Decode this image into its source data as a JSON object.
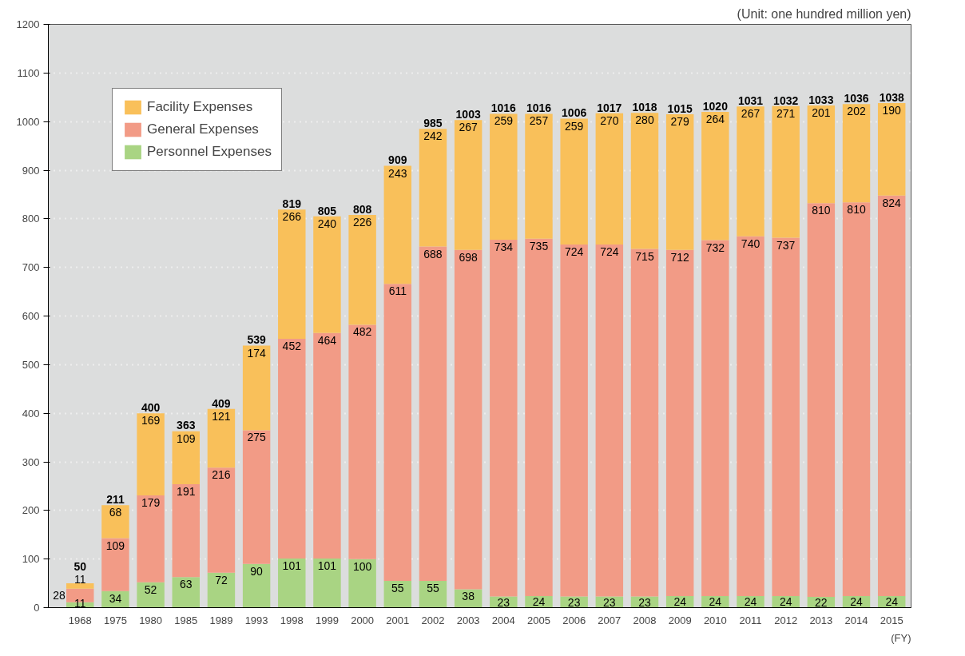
{
  "chart_data": {
    "type": "bar",
    "stacked": true,
    "xlabel": "(FY)",
    "annotations": [
      "(Unit: one hundred million yen)"
    ],
    "categories": [
      "1968",
      "1975",
      "1980",
      "1985",
      "1989",
      "1993",
      "1998",
      "1999",
      "2000",
      "2001",
      "2002",
      "2003",
      "2004",
      "2005",
      "2006",
      "2007",
      "2008",
      "2009",
      "2010",
      "2011",
      "2012",
      "2013",
      "2014",
      "2015"
    ],
    "series": [
      {
        "name": "Personnel Expenses",
        "color": "#a9d483",
        "values": [
          11,
          34,
          52,
          63,
          72,
          90,
          101,
          101,
          100,
          55,
          55,
          38,
          23,
          24,
          23,
          23,
          23,
          24,
          24,
          24,
          24,
          22,
          24,
          24
        ]
      },
      {
        "name": "General Expenses",
        "color": "#f29b86",
        "values": [
          28,
          109,
          179,
          191,
          216,
          275,
          452,
          464,
          482,
          611,
          688,
          698,
          734,
          735,
          724,
          724,
          715,
          712,
          732,
          740,
          737,
          810,
          810,
          824
        ]
      },
      {
        "name": "Facility Expenses",
        "color": "#f9c05a",
        "values": [
          11,
          68,
          169,
          109,
          121,
          174,
          266,
          240,
          226,
          243,
          242,
          267,
          259,
          257,
          259,
          270,
          280,
          279,
          264,
          267,
          271,
          201,
          202,
          190
        ]
      }
    ],
    "totals": [
      "50",
      "211",
      "400",
      "363",
      "409",
      "539",
      "819",
      "805",
      "808",
      "909",
      "985",
      "1003",
      "1016",
      "1016",
      "1006",
      "1017",
      "1018",
      "1015",
      "1020",
      "1031",
      "1032",
      "1033",
      "1036",
      "1038"
    ],
    "data_labels": true,
    "ylim": [
      0,
      1200
    ],
    "yticks": [
      0,
      100,
      200,
      300,
      400,
      500,
      600,
      700,
      800,
      900,
      1000,
      1100,
      1200
    ],
    "grid": "y",
    "legend": "top left"
  }
}
